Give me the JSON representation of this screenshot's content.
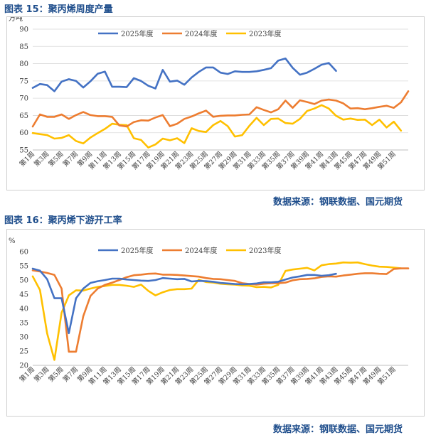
{
  "charts": [
    {
      "fig_label": "图表 15：",
      "fig_title": "聚丙烯周度产量",
      "source": "数据来源：钢联数据、国元期货"
    },
    {
      "fig_label": "图表 16：",
      "fig_title": "聚丙烯下游开工率",
      "source": "数据来源：钢联数据、国元期货"
    }
  ],
  "series_colors": [
    "#4472c4",
    "#ed7d31",
    "#ffc000"
  ],
  "chart_data": [
    {
      "type": "line",
      "title": "",
      "ylabel": "万吨",
      "ylim": [
        55,
        90
      ],
      "yticks": [
        55,
        60,
        65,
        70,
        75,
        80,
        85,
        90
      ],
      "legend_position": "top",
      "grid": true,
      "xticklabels": [
        "第1周",
        "第3周",
        "第5周",
        "第7周",
        "第9周",
        "第11周",
        "第13周",
        "第15周",
        "第17周",
        "第19周",
        "第21周",
        "第23周",
        "第25周",
        "第27周",
        "第29周",
        "第31周",
        "第33周",
        "第35周",
        "第37周",
        "第39周",
        "第41周",
        "第43周",
        "第45周",
        "第47周",
        "第49周",
        "第51周"
      ],
      "series": [
        {
          "name": "2025年度",
          "color": "#4472c4",
          "values": [
            73.0,
            74.1,
            73.8,
            72.0,
            74.8,
            75.5,
            75.0,
            73.1,
            74.9,
            77.1,
            77.7,
            73.3,
            73.3,
            73.2,
            75.8,
            75.0,
            73.6,
            72.8,
            78.2,
            74.8,
            75.1,
            73.9,
            76.0,
            77.6,
            78.9,
            78.9,
            77.4,
            77.0,
            77.8,
            77.6,
            77.6,
            77.8,
            78.2,
            78.7,
            80.9,
            81.5,
            78.8,
            76.8,
            77.4,
            78.5,
            79.7,
            80.2,
            77.9
          ]
        },
        {
          "name": "2024年度",
          "color": "#ed7d31",
          "values": [
            61.8,
            65.3,
            64.6,
            64.6,
            65.3,
            64.0,
            65.1,
            66.0,
            65.1,
            64.8,
            64.8,
            64.6,
            62.1,
            61.8,
            63.1,
            63.6,
            63.5,
            64.4,
            65.1,
            61.9,
            62.6,
            64.0,
            64.7,
            65.6,
            66.4,
            64.6,
            64.9,
            65.0,
            65.0,
            65.2,
            65.3,
            67.4,
            66.6,
            65.9,
            66.8,
            69.3,
            67.2,
            69.4,
            68.9,
            68.3,
            69.3,
            69.6,
            69.3,
            68.5,
            67.0,
            67.1,
            66.8,
            67.1,
            67.5,
            67.8,
            67.2,
            68.8,
            72.0
          ]
        },
        {
          "name": "2023年度",
          "color": "#ffc000",
          "values": [
            59.9,
            59.6,
            59.3,
            58.3,
            58.5,
            59.3,
            57.6,
            56.9,
            58.6,
            59.9,
            61.1,
            62.6,
            62.3,
            62.2,
            58.4,
            57.9,
            55.7,
            56.6,
            58.3,
            57.8,
            58.4,
            57.0,
            61.3,
            60.5,
            60.2,
            62.2,
            63.4,
            61.9,
            58.9,
            59.3,
            62.0,
            64.3,
            62.2,
            64.0,
            64.1,
            62.8,
            62.6,
            64.0,
            66.3,
            67.0,
            68.0,
            67.0,
            64.9,
            63.8,
            64.1,
            63.7,
            63.8,
            62.2,
            63.8,
            61.5,
            63.2,
            60.6
          ]
        }
      ]
    },
    {
      "type": "line",
      "title": "",
      "ylabel": "%",
      "ylim": [
        20,
        60
      ],
      "yticks": [
        20,
        25,
        30,
        35,
        40,
        45,
        50,
        55,
        60
      ],
      "legend_position": "top",
      "grid": false,
      "xticklabels": [
        "第1周",
        "第3周",
        "第5周",
        "第7周",
        "第9周",
        "第11周",
        "第13周",
        "第15周",
        "第17周",
        "第19周",
        "第21周",
        "第23周",
        "第25周",
        "第27周",
        "第29周",
        "第31周",
        "第33周",
        "第35周",
        "第37周",
        "第39周",
        "第41周",
        "第43周",
        "第45周",
        "第47周",
        "第49周",
        "第51周"
      ],
      "series": [
        {
          "name": "2025年度",
          "color": "#4472c4",
          "values": [
            54.0,
            53.3,
            50.3,
            43.6,
            43.6,
            31.3,
            43.6,
            47.0,
            49.0,
            49.6,
            50.0,
            50.5,
            50.5,
            50.2,
            50.0,
            49.8,
            49.7,
            50.0,
            50.7,
            50.5,
            50.3,
            50.4,
            49.5,
            49.7,
            49.6,
            49.4,
            49.0,
            48.8,
            48.6,
            48.5,
            48.6,
            48.8,
            49.2,
            49.2,
            49.4,
            50.2,
            50.9,
            51.3,
            51.8,
            51.8,
            51.5,
            51.7,
            52.2
          ]
        },
        {
          "name": "2024年度",
          "color": "#ed7d31",
          "values": [
            53.4,
            53.0,
            52.5,
            51.8,
            47.0,
            24.8,
            24.8,
            37.3,
            44.4,
            47.0,
            48.3,
            49.1,
            50.0,
            51.0,
            51.7,
            51.9,
            52.2,
            52.3,
            51.9,
            51.9,
            51.8,
            51.6,
            51.4,
            51.2,
            50.7,
            50.4,
            50.3,
            50.0,
            49.7,
            48.9,
            48.6,
            48.4,
            48.7,
            48.9,
            48.9,
            49.1,
            49.9,
            50.3,
            50.4,
            50.6,
            51.1,
            51.3,
            51.2,
            51.6,
            51.9,
            52.2,
            52.4,
            52.4,
            52.2,
            52.1,
            53.9,
            54.1,
            54.1
          ]
        },
        {
          "name": "2023年度",
          "color": "#ffc000",
          "values": [
            51.3,
            46.5,
            31.2,
            21.9,
            38.5,
            44.6,
            46.4,
            46.3,
            47.0,
            47.6,
            47.9,
            48.3,
            48.3,
            48.0,
            47.6,
            48.4,
            46.2,
            44.6,
            45.7,
            46.5,
            46.8,
            46.8,
            47.0,
            50.1,
            49.3,
            49.1,
            48.7,
            48.5,
            48.4,
            48.1,
            48.0,
            47.5,
            47.6,
            47.4,
            48.3,
            53.2,
            53.7,
            54.0,
            54.3,
            53.4,
            55.2,
            55.6,
            55.8,
            56.2,
            56.1,
            56.2,
            55.6,
            55.1,
            54.7,
            54.6,
            54.4,
            54.1
          ]
        }
      ]
    }
  ]
}
